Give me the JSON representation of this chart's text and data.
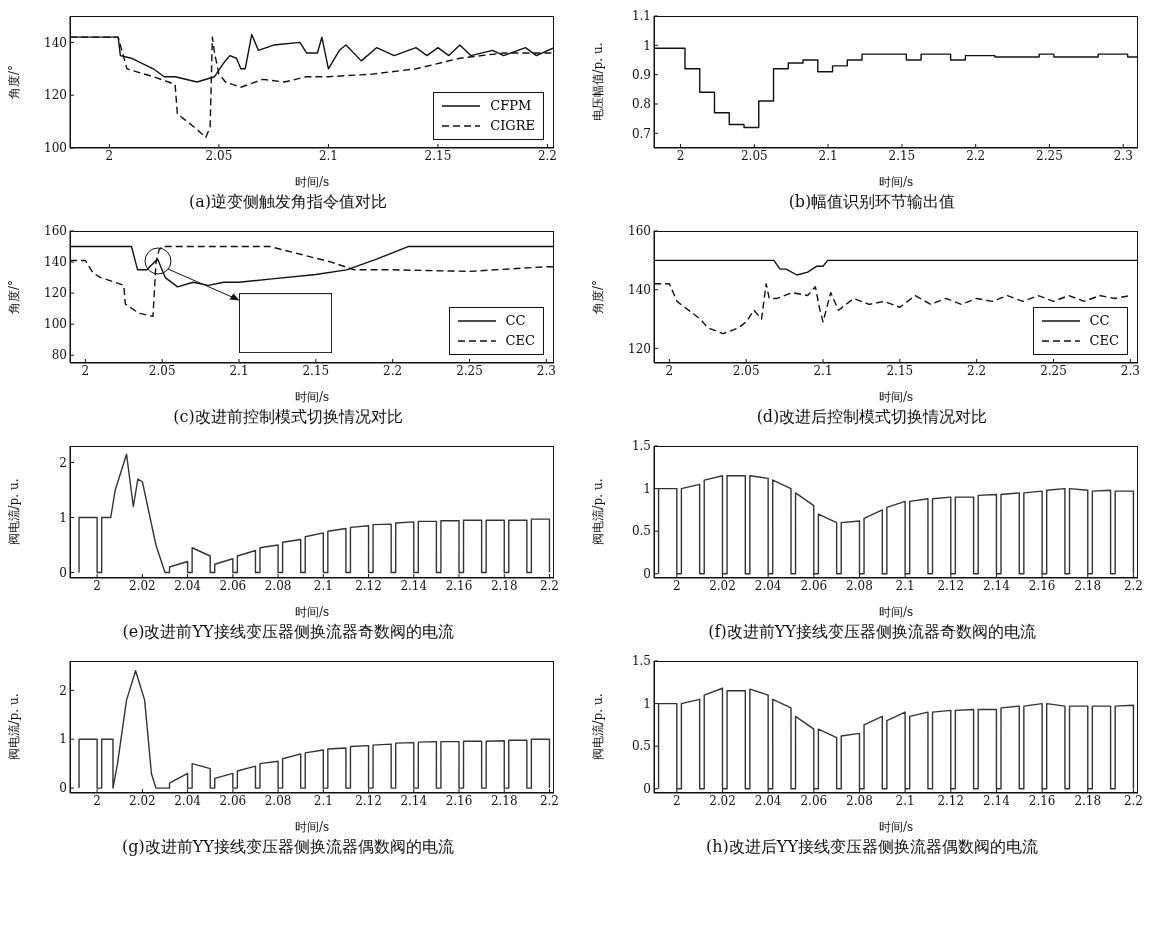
{
  "chart_data": [
    {
      "type": "line",
      "title": "(a)逆变侧触发角指令值对比",
      "xlabel": "时间/s",
      "ylabel": "角度/°",
      "xlim": [
        1.982,
        2.203
      ],
      "ylim": [
        100,
        150
      ],
      "xticks": [
        2,
        2.05,
        2.1,
        2.15,
        2.2
      ],
      "yticks": [
        100,
        120,
        140
      ],
      "legend": "bottom right",
      "marker": "none",
      "series": [
        {
          "name": "CFPM",
          "color": "#111111",
          "line_style": "solid",
          "x": [
            1.982,
            2.004,
            2.005,
            2.01,
            2.02,
            2.025,
            2.03,
            2.04,
            2.048,
            2.052,
            2.055,
            2.058,
            2.06,
            2.062,
            2.065,
            2.068,
            2.075,
            2.087,
            2.09,
            2.095,
            2.097,
            2.1,
            2.105,
            2.108,
            2.115,
            2.122,
            2.13,
            2.14,
            2.145,
            2.15,
            2.155,
            2.16,
            2.165,
            2.175,
            2.18,
            2.19,
            2.195,
            2.203
          ],
          "values": [
            142,
            142,
            135,
            134,
            130,
            127,
            127,
            125,
            127,
            132,
            135,
            134,
            130,
            130,
            143,
            137,
            139,
            140,
            136,
            136,
            142,
            130,
            137,
            139,
            133,
            138,
            135,
            138,
            135,
            138,
            135,
            139,
            135,
            137,
            135,
            138,
            135,
            138
          ]
        },
        {
          "name": "CIGRE",
          "color": "#111111",
          "line_style": "dashed",
          "x": [
            1.982,
            2.004,
            2.008,
            2.02,
            2.027,
            2.03,
            2.031,
            2.04,
            2.044,
            2.046,
            2.047,
            2.048,
            2.05,
            2.053,
            2.06,
            2.07,
            2.08,
            2.09,
            2.1,
            2.12,
            2.14,
            2.16,
            2.18,
            2.203
          ],
          "values": [
            142,
            142,
            130,
            127,
            125,
            124,
            113,
            107,
            104,
            108,
            142,
            136,
            128,
            125,
            123,
            126,
            125,
            127,
            127,
            128,
            130,
            134,
            136,
            136
          ]
        }
      ]
    },
    {
      "type": "step",
      "title": "(b)幅值识别环节输出值",
      "xlabel": "时间/s",
      "ylabel": "电压幅值/p. u.",
      "xlim": [
        1.982,
        2.31
      ],
      "ylim": [
        0.65,
        1.1
      ],
      "xticks": [
        2,
        2.05,
        2.1,
        2.15,
        2.2,
        2.25,
        2.3
      ],
      "yticks": [
        0.7,
        0.8,
        0.9,
        1,
        1.1
      ],
      "legend": false,
      "marker": "none",
      "series": [
        {
          "color": "#111111",
          "line_style": "solid",
          "x": [
            1.982,
            2.003,
            2.013,
            2.023,
            2.033,
            2.043,
            2.053,
            2.063,
            2.073,
            2.083,
            2.093,
            2.103,
            2.113,
            2.123,
            2.153,
            2.163,
            2.183,
            2.193,
            2.213,
            2.243,
            2.253,
            2.273,
            2.283,
            2.303,
            2.31
          ],
          "values": [
            0.99,
            0.92,
            0.84,
            0.77,
            0.73,
            0.72,
            0.81,
            0.92,
            0.94,
            0.95,
            0.91,
            0.93,
            0.95,
            0.97,
            0.95,
            0.97,
            0.95,
            0.965,
            0.96,
            0.97,
            0.96,
            0.96,
            0.97,
            0.96,
            0.96
          ]
        }
      ]
    },
    {
      "type": "line",
      "title": "(c)改进前控制模式切换情况对比",
      "xlabel": "时间/s",
      "ylabel": "角度/°",
      "xlim": [
        1.99,
        2.305
      ],
      "ylim": [
        75,
        160
      ],
      "xticks": [
        2,
        2.05,
        2.1,
        2.15,
        2.2,
        2.25,
        2.3
      ],
      "yticks": [
        80,
        100,
        120,
        140,
        160
      ],
      "legend": "bottom right",
      "marker": "none",
      "series": [
        {
          "name": "CC",
          "color": "#111111",
          "line_style": "solid",
          "x": [
            1.99,
            2.03,
            2.034,
            2.04,
            2.047,
            2.052,
            2.06,
            2.07,
            2.08,
            2.09,
            2.1,
            2.12,
            2.15,
            2.17,
            2.19,
            2.21,
            2.305
          ],
          "values": [
            150,
            150,
            135,
            135,
            142,
            130,
            124,
            127,
            125,
            127,
            127,
            129,
            132,
            135,
            142,
            150,
            150
          ]
        },
        {
          "name": "CEC",
          "color": "#111111",
          "line_style": "dashed",
          "x": [
            1.99,
            2.0,
            2.005,
            2.01,
            2.025,
            2.026,
            2.035,
            2.044,
            2.046,
            2.048,
            2.05,
            2.12,
            2.14,
            2.16,
            2.175,
            2.2,
            2.25,
            2.3,
            2.305
          ],
          "values": [
            141,
            141,
            133,
            130,
            125,
            113,
            107,
            105,
            140,
            148,
            150,
            150,
            145,
            140,
            135,
            135,
            134,
            137,
            137
          ]
        }
      ]
    },
    {
      "type": "line",
      "title": "(d)改进后控制模式切换情况对比",
      "xlabel": "时间/s",
      "ylabel": "角度/°",
      "xlim": [
        1.99,
        2.305
      ],
      "ylim": [
        115,
        160
      ],
      "xticks": [
        2,
        2.05,
        2.1,
        2.15,
        2.2,
        2.25,
        2.3
      ],
      "yticks": [
        120,
        140,
        160
      ],
      "legend": "bottom right",
      "marker": "none",
      "series": [
        {
          "name": "CC",
          "color": "#111111",
          "line_style": "solid",
          "x": [
            1.99,
            2.068,
            2.072,
            2.076,
            2.083,
            2.09,
            2.096,
            2.1,
            2.103,
            2.305
          ],
          "values": [
            150,
            150,
            147,
            147,
            145,
            146,
            148,
            148,
            150,
            150
          ]
        },
        {
          "name": "CEC",
          "color": "#111111",
          "line_style": "dashed",
          "x": [
            1.99,
            2.0,
            2.005,
            2.01,
            2.02,
            2.025,
            2.035,
            2.045,
            2.05,
            2.055,
            2.06,
            2.063,
            2.065,
            2.07,
            2.08,
            2.09,
            2.095,
            2.098,
            2.1,
            2.105,
            2.11,
            2.12,
            2.13,
            2.14,
            2.15,
            2.16,
            2.17,
            2.18,
            2.19,
            2.2,
            2.21,
            2.22,
            2.23,
            2.24,
            2.25,
            2.26,
            2.27,
            2.28,
            2.29,
            2.3
          ],
          "values": [
            142,
            142,
            136,
            134,
            130,
            127,
            125,
            127,
            129,
            133,
            130,
            142,
            137,
            137,
            139,
            138,
            141,
            133,
            129,
            139,
            133,
            137,
            135,
            136,
            134,
            138,
            135,
            137,
            135,
            137,
            136,
            138,
            136,
            138,
            136,
            138,
            136,
            138,
            137,
            138
          ]
        }
      ]
    },
    {
      "type": "line",
      "title": "(e)改进前YY接线变压器侧换流器奇数阀的电流",
      "xlabel": "时间/s",
      "ylabel": "阀电流/p. u.",
      "xlim": [
        1.988,
        2.202
      ],
      "ylim": [
        -0.1,
        2.3
      ],
      "xticks": [
        2,
        2.02,
        2.04,
        2.06,
        2.08,
        2.1,
        2.12,
        2.14,
        2.16,
        2.18,
        2.2
      ],
      "yticks": [
        0,
        1,
        2
      ],
      "legend": false,
      "marker": "none",
      "series": [
        {
          "color": "#333333",
          "line_style": "solid",
          "x": [
            1.992,
            1.992,
            2,
            2,
            2.002,
            2.002,
            2.006,
            2.008,
            2.013,
            2.016,
            2.018,
            2.02,
            2.026,
            2.03,
            2.032,
            2.032,
            2.04,
            2.04,
            2.042,
            2.042,
            2.05,
            2.05,
            2.052,
            2.052,
            2.06,
            2.06,
            2.062,
            2.062,
            2.07,
            2.07,
            2.072,
            2.072,
            2.08,
            2.08,
            2.082,
            2.082,
            2.09,
            2.09,
            2.092,
            2.092,
            2.1,
            2.1,
            2.102,
            2.102,
            2.11,
            2.11,
            2.112,
            2.112,
            2.12,
            2.12,
            2.122,
            2.122,
            2.13,
            2.13,
            2.132,
            2.132,
            2.14,
            2.14,
            2.142,
            2.142,
            2.15,
            2.15,
            2.152,
            2.152,
            2.16,
            2.16,
            2.162,
            2.162,
            2.17,
            2.17,
            2.172,
            2.172,
            2.18,
            2.18,
            2.182,
            2.182,
            2.19,
            2.19,
            2.192,
            2.192,
            2.2,
            2.2
          ],
          "values": [
            0,
            1,
            1,
            0,
            0,
            1,
            1,
            1.5,
            2.15,
            1.2,
            1.7,
            1.65,
            0.5,
            0,
            0,
            0.1,
            0.2,
            0,
            0,
            0.45,
            0.3,
            0,
            0,
            0.15,
            0.25,
            0,
            0,
            0.3,
            0.4,
            0,
            0,
            0.45,
            0.5,
            0,
            0,
            0.55,
            0.6,
            0,
            0,
            0.65,
            0.72,
            0,
            0,
            0.75,
            0.8,
            0,
            0,
            0.82,
            0.85,
            0,
            0,
            0.87,
            0.88,
            0,
            0,
            0.9,
            0.92,
            0,
            0,
            0.93,
            0.93,
            0,
            0,
            0.94,
            0.94,
            0,
            0,
            0.95,
            0.95,
            0,
            0,
            0.95,
            0.95,
            0,
            0,
            0.95,
            0.95,
            0,
            0,
            0.97,
            0.97,
            0
          ]
        }
      ]
    },
    {
      "type": "line",
      "title": "(f)改进前YY接线变压器侧换流器奇数阀的电流",
      "xlabel": "时间/s",
      "ylabel": "阀电流/p. u.",
      "xlim": [
        1.99,
        2.202
      ],
      "ylim": [
        -0.05,
        1.5
      ],
      "xticks": [
        2,
        2.02,
        2.04,
        2.06,
        2.08,
        2.1,
        2.12,
        2.14,
        2.16,
        2.18,
        2.2
      ],
      "yticks": [
        0,
        0.5,
        1,
        1.5
      ],
      "legend": false,
      "marker": "none",
      "series": [
        {
          "color": "#333333",
          "line_style": "solid",
          "x": [
            1.992,
            1.992,
            2,
            2,
            2.002,
            2.002,
            2.01,
            2.01,
            2.012,
            2.012,
            2.02,
            2.02,
            2.022,
            2.022,
            2.03,
            2.03,
            2.032,
            2.032,
            2.04,
            2.04,
            2.042,
            2.042,
            2.05,
            2.05,
            2.052,
            2.052,
            2.06,
            2.06,
            2.062,
            2.062,
            2.07,
            2.07,
            2.072,
            2.072,
            2.08,
            2.08,
            2.082,
            2.082,
            2.09,
            2.09,
            2.092,
            2.092,
            2.1,
            2.1,
            2.102,
            2.102,
            2.11,
            2.11,
            2.112,
            2.112,
            2.12,
            2.12,
            2.122,
            2.122,
            2.13,
            2.13,
            2.132,
            2.132,
            2.14,
            2.14,
            2.142,
            2.142,
            2.15,
            2.15,
            2.152,
            2.152,
            2.16,
            2.16,
            2.162,
            2.162,
            2.17,
            2.17,
            2.172,
            2.172,
            2.18,
            2.18,
            2.182,
            2.182,
            2.19,
            2.19,
            2.192,
            2.192,
            2.2,
            2.2
          ],
          "values": [
            0,
            1,
            1,
            0,
            0,
            1,
            1.05,
            0,
            0,
            1.1,
            1.15,
            0,
            0,
            1.15,
            1.15,
            0,
            0,
            1.15,
            1.12,
            0,
            0,
            1.1,
            1,
            0,
            0,
            0.95,
            0.8,
            0,
            0,
            0.7,
            0.6,
            0,
            0,
            0.6,
            0.62,
            0,
            0,
            0.65,
            0.75,
            0,
            0,
            0.78,
            0.85,
            0,
            0,
            0.85,
            0.88,
            0,
            0,
            0.88,
            0.9,
            0,
            0,
            0.9,
            0.9,
            0,
            0,
            0.92,
            0.93,
            0,
            0,
            0.93,
            0.95,
            0,
            0,
            0.95,
            0.97,
            0,
            0,
            0.98,
            1,
            0,
            0,
            1,
            0.98,
            0,
            0,
            0.97,
            0.98,
            0,
            0,
            0.97,
            0.97,
            0
          ]
        }
      ]
    },
    {
      "type": "line",
      "title": "(g)改进前YY接线变压器侧换流器偶数阀的电流",
      "xlabel": "时间/s",
      "ylabel": "阀电流/p. u.",
      "xlim": [
        1.988,
        2.202
      ],
      "ylim": [
        -0.1,
        2.6
      ],
      "xticks": [
        2,
        2.02,
        2.04,
        2.06,
        2.08,
        2.1,
        2.12,
        2.14,
        2.16,
        2.18,
        2.2
      ],
      "yticks": [
        0,
        1,
        2
      ],
      "legend": false,
      "marker": "none",
      "series": [
        {
          "color": "#333333",
          "line_style": "solid",
          "x": [
            1.992,
            1.992,
            2,
            2,
            2.002,
            2.002,
            2.007,
            2.007,
            2.009,
            2.013,
            2.017,
            2.021,
            2.024,
            2.026,
            2.032,
            2.032,
            2.04,
            2.04,
            2.042,
            2.042,
            2.05,
            2.05,
            2.052,
            2.052,
            2.06,
            2.06,
            2.062,
            2.062,
            2.07,
            2.07,
            2.072,
            2.072,
            2.08,
            2.08,
            2.082,
            2.082,
            2.09,
            2.09,
            2.092,
            2.092,
            2.1,
            2.1,
            2.102,
            2.102,
            2.11,
            2.11,
            2.112,
            2.112,
            2.12,
            2.12,
            2.122,
            2.122,
            2.13,
            2.13,
            2.132,
            2.132,
            2.14,
            2.14,
            2.142,
            2.142,
            2.15,
            2.15,
            2.152,
            2.152,
            2.16,
            2.16,
            2.162,
            2.162,
            2.17,
            2.17,
            2.172,
            2.172,
            2.18,
            2.18,
            2.182,
            2.182,
            2.19,
            2.19,
            2.192,
            2.192,
            2.2,
            2.2
          ],
          "values": [
            0,
            1,
            1,
            0,
            0,
            1,
            1,
            0,
            0.5,
            1.8,
            2.4,
            1.8,
            0.3,
            0,
            0,
            0.1,
            0.3,
            0,
            0,
            0.5,
            0.4,
            0,
            0,
            0.2,
            0.3,
            0,
            0,
            0.35,
            0.45,
            0,
            0,
            0.5,
            0.55,
            0,
            0,
            0.6,
            0.7,
            0,
            0,
            0.72,
            0.78,
            0,
            0,
            0.8,
            0.82,
            0,
            0,
            0.85,
            0.87,
            0,
            0,
            0.88,
            0.9,
            0,
            0,
            0.92,
            0.93,
            0,
            0,
            0.94,
            0.95,
            0,
            0,
            0.95,
            0.95,
            0,
            0,
            0.96,
            0.96,
            0,
            0,
            0.96,
            0.97,
            0,
            0,
            0.98,
            0.98,
            0,
            0,
            1,
            1,
            0
          ]
        }
      ]
    },
    {
      "type": "line",
      "title": "(h)改进后YY接线变压器侧换流器偶数阀的电流",
      "xlabel": "时间/s",
      "ylabel": "阀电流/p. u.",
      "xlim": [
        1.99,
        2.202
      ],
      "ylim": [
        -0.05,
        1.5
      ],
      "xticks": [
        2,
        2.02,
        2.04,
        2.06,
        2.08,
        2.1,
        2.12,
        2.14,
        2.16,
        2.18,
        2.2
      ],
      "yticks": [
        0,
        0.5,
        1,
        1.5
      ],
      "legend": false,
      "marker": "none",
      "series": [
        {
          "color": "#333333",
          "line_style": "solid",
          "x": [
            1.992,
            1.992,
            2,
            2,
            2.002,
            2.002,
            2.01,
            2.01,
            2.012,
            2.012,
            2.02,
            2.02,
            2.022,
            2.022,
            2.03,
            2.03,
            2.032,
            2.032,
            2.04,
            2.04,
            2.042,
            2.042,
            2.05,
            2.05,
            2.052,
            2.052,
            2.06,
            2.06,
            2.062,
            2.062,
            2.07,
            2.07,
            2.072,
            2.072,
            2.08,
            2.08,
            2.082,
            2.082,
            2.09,
            2.09,
            2.092,
            2.092,
            2.1,
            2.1,
            2.102,
            2.102,
            2.11,
            2.11,
            2.112,
            2.112,
            2.12,
            2.12,
            2.122,
            2.122,
            2.13,
            2.13,
            2.132,
            2.132,
            2.14,
            2.14,
            2.142,
            2.142,
            2.15,
            2.15,
            2.152,
            2.152,
            2.16,
            2.16,
            2.162,
            2.162,
            2.17,
            2.17,
            2.172,
            2.172,
            2.18,
            2.18,
            2.182,
            2.182,
            2.19,
            2.19,
            2.192,
            2.192,
            2.2,
            2.2
          ],
          "values": [
            0,
            1,
            1,
            0,
            0,
            1,
            1.05,
            0,
            0,
            1.1,
            1.18,
            0,
            0,
            1.15,
            1.15,
            0,
            0,
            1.17,
            1.1,
            0,
            0,
            1.05,
            0.95,
            0,
            0,
            0.85,
            0.7,
            0,
            0,
            0.7,
            0.6,
            0,
            0,
            0.62,
            0.65,
            0,
            0,
            0.75,
            0.85,
            0,
            0,
            0.8,
            0.9,
            0,
            0,
            0.85,
            0.9,
            0,
            0,
            0.9,
            0.92,
            0,
            0,
            0.92,
            0.93,
            0,
            0,
            0.93,
            0.93,
            0,
            0,
            0.95,
            0.97,
            0,
            0,
            0.97,
            1,
            0,
            0,
            1,
            0.97,
            0,
            0,
            0.97,
            0.97,
            0,
            0,
            0.97,
            0.97,
            0,
            0,
            0.97,
            0.98,
            0
          ]
        }
      ]
    }
  ]
}
